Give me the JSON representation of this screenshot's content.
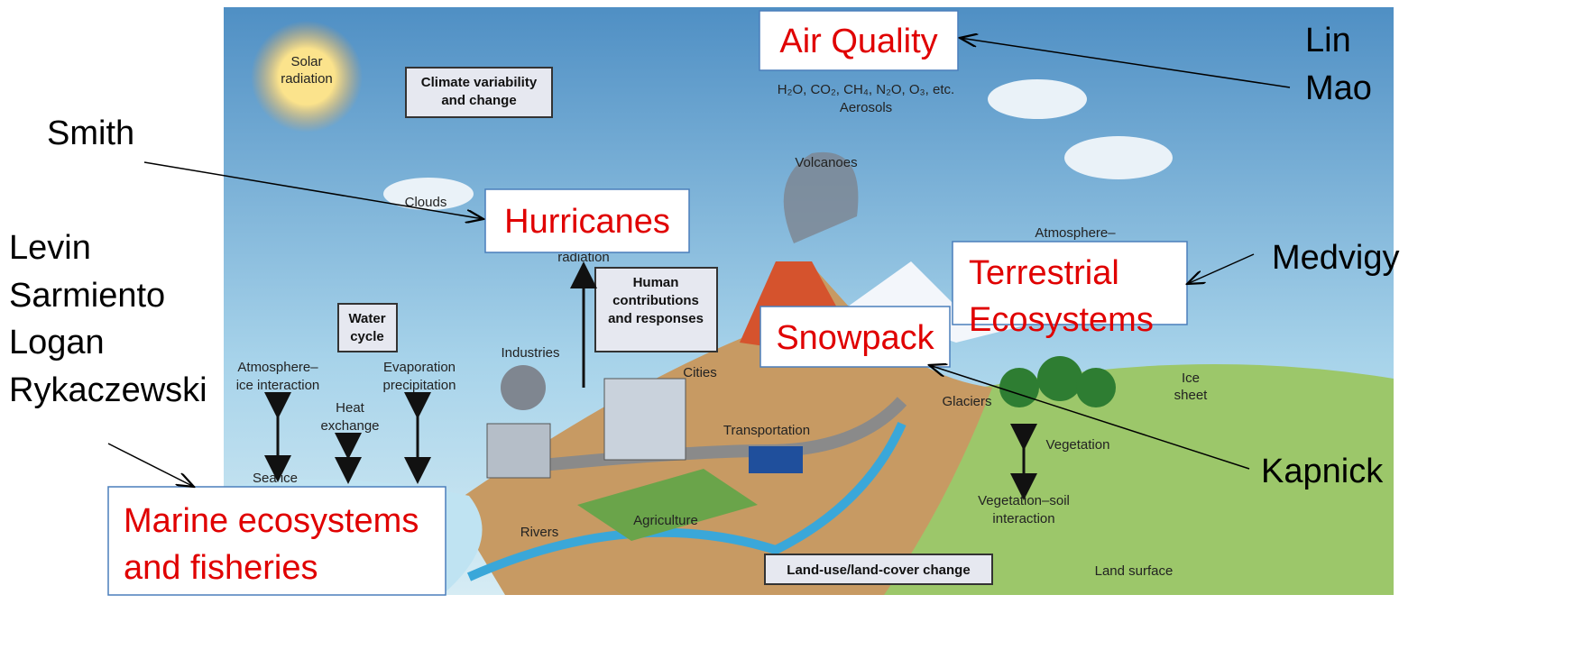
{
  "illustration": {
    "sun": [
      "Solar",
      "radiation"
    ],
    "climate_box": [
      "Climate variability",
      "and change"
    ],
    "gases": "H₂O, CO₂, CH₄, N₂O, O₃, etc.",
    "aerosols": "Aerosols",
    "volcanoes": "Volcanoes",
    "clouds": "Clouds",
    "radiation": "radiation",
    "human_box": [
      "Human",
      "contributions",
      "and responses"
    ],
    "industries": "Industries",
    "cities": "Cities",
    "water_box": [
      "Water",
      "cycle"
    ],
    "atm_ice": [
      "Atmosphere–",
      "ice interaction"
    ],
    "heat": [
      "Heat",
      "exchange"
    ],
    "evap": [
      "Evaporation",
      "precipitation"
    ],
    "sea_ice": "Sea ice",
    "rivers": "Rivers",
    "agriculture": "Agriculture",
    "transportation": "Transportation",
    "atmosphere": "Atmosphere–",
    "glaciers": "Glaciers",
    "ice_sheet": [
      "Ice",
      "sheet"
    ],
    "vegetation": "Vegetation",
    "veg_soil": [
      "Vegetation–soil",
      "interaction"
    ],
    "land_use_box": "Land-use/land-cover change",
    "land_surface": "Land surface"
  },
  "topics": {
    "air_quality": "Air Quality",
    "hurricanes": "Hurricanes",
    "terrestrial": [
      "Terrestrial",
      "Ecosystems"
    ],
    "snowpack": "Snowpack",
    "marine": [
      "Marine ecosystems",
      "and fisheries"
    ]
  },
  "people": {
    "air_quality": [
      "Lin",
      "Mao"
    ],
    "hurricanes": [
      "Smith"
    ],
    "marine": [
      "Levin",
      "Sarmiento",
      "Logan",
      "Rykaczewski"
    ],
    "terrestrial": [
      "Medvigy"
    ],
    "snowpack": [
      "Kapnick"
    ]
  }
}
